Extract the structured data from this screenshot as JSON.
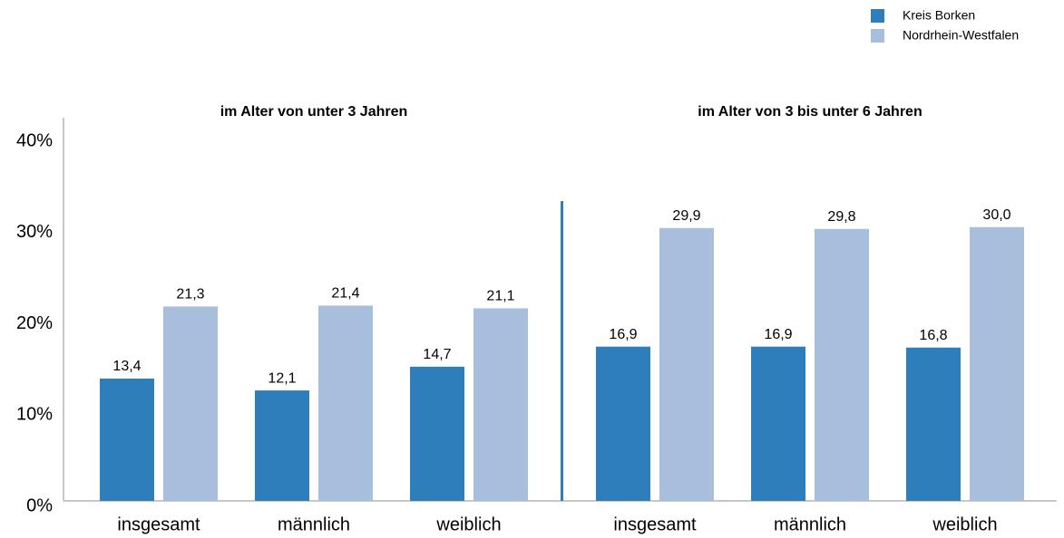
{
  "chart_data": {
    "type": "bar",
    "groups": [
      "im Alter von unter 3 Jahren",
      "im Alter von 3 bis unter 6 Jahren"
    ],
    "categories": [
      "insgesamt",
      "männlich",
      "weiblich",
      "insgesamt",
      "männlich",
      "weiblich"
    ],
    "series": [
      {
        "name": "Kreis Borken",
        "color": "#2e7ebb",
        "values": [
          13.4,
          12.1,
          14.7,
          16.9,
          16.9,
          16.8
        ],
        "value_labels": [
          "13,4",
          "12,1",
          "14,7",
          "16,9",
          "16,9",
          "16,8"
        ]
      },
      {
        "name": "Nordrhein-Westfalen",
        "color": "#a8bedd",
        "values": [
          21.3,
          21.4,
          21.1,
          29.9,
          29.8,
          30.0
        ],
        "value_labels": [
          "21,3",
          "21,4",
          "21,1",
          "29,9",
          "29,8",
          "30,0"
        ]
      }
    ],
    "ylim": [
      0,
      40
    ],
    "yticks": [
      {
        "value": 0,
        "label": "0%"
      },
      {
        "value": 10,
        "label": "10%"
      },
      {
        "value": 20,
        "label": "20%"
      },
      {
        "value": 30,
        "label": "30%"
      },
      {
        "value": 40,
        "label": "40%"
      }
    ],
    "legend": "top-right"
  }
}
